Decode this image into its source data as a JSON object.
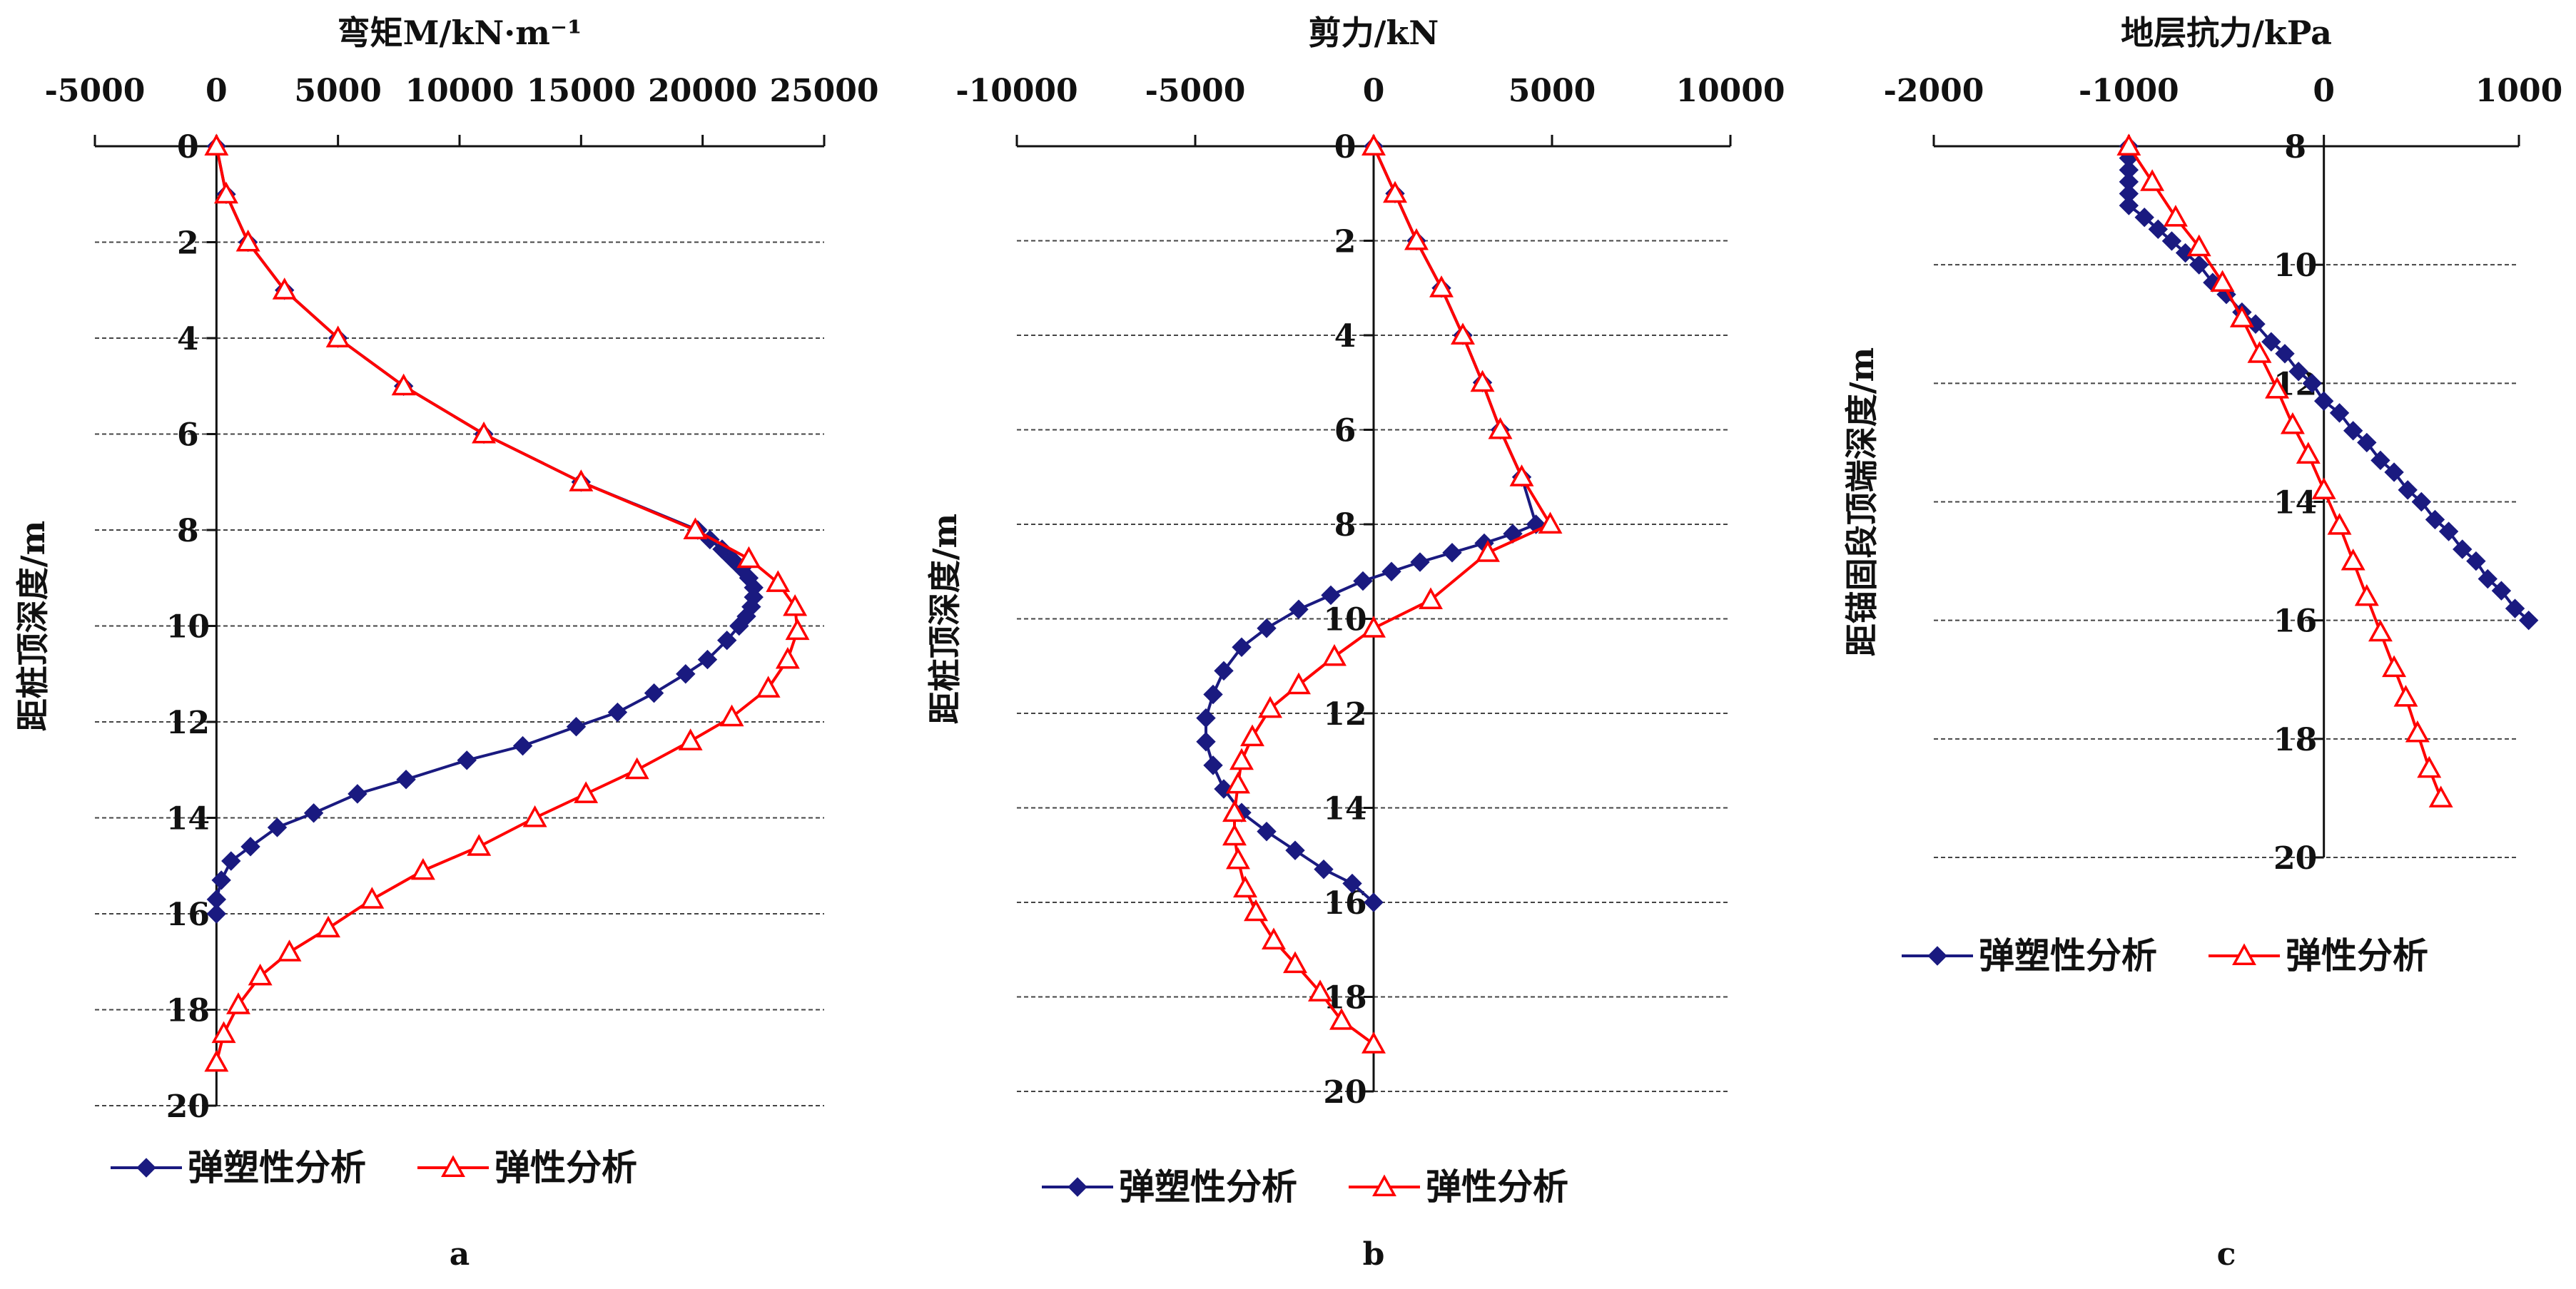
{
  "colors": {
    "elastoplastic": "#1a1a80",
    "elastic": "#ff0000",
    "axis": "#111111",
    "grid": "#444444"
  },
  "chart_data": [
    {
      "type": "line",
      "panel_label": "a",
      "title": "弯矩M/kN·m⁻¹",
      "xlabel": "弯矩M/kN·m⁻¹",
      "ylabel": "距桩顶深度/m",
      "xlim": [
        -5000,
        25000
      ],
      "ylim": [
        0,
        20
      ],
      "xticks": [
        -5000,
        0,
        5000,
        10000,
        15000,
        20000,
        25000
      ],
      "yticks": [
        0,
        2,
        4,
        6,
        8,
        10,
        12,
        14,
        16,
        18,
        20
      ],
      "x_axis_position": "top",
      "y_inverted": true,
      "grid": "horizontal dashed",
      "legend": "bottom",
      "series": [
        {
          "name": "弹塑性分析",
          "marker": "diamond",
          "points": [
            [
              0,
              0
            ],
            [
              400,
              1
            ],
            [
              1300,
              2
            ],
            [
              2800,
              3
            ],
            [
              5000,
              4
            ],
            [
              7700,
              5
            ],
            [
              11000,
              6
            ],
            [
              15000,
              7
            ],
            [
              19800,
              8
            ],
            [
              20300,
              8.2
            ],
            [
              20800,
              8.4
            ],
            [
              21200,
              8.6
            ],
            [
              21600,
              8.8
            ],
            [
              21900,
              9
            ],
            [
              22100,
              9.2
            ],
            [
              22100,
              9.4
            ],
            [
              22000,
              9.6
            ],
            [
              21800,
              9.8
            ],
            [
              21500,
              10
            ],
            [
              21000,
              10.3
            ],
            [
              20200,
              10.7
            ],
            [
              19300,
              11
            ],
            [
              18000,
              11.4
            ],
            [
              16500,
              11.8
            ],
            [
              14800,
              12.1
            ],
            [
              12600,
              12.5
            ],
            [
              10300,
              12.8
            ],
            [
              7800,
              13.2
            ],
            [
              5800,
              13.5
            ],
            [
              4000,
              13.9
            ],
            [
              2500,
              14.2
            ],
            [
              1400,
              14.6
            ],
            [
              600,
              14.9
            ],
            [
              200,
              15.3
            ],
            [
              0,
              15.7
            ],
            [
              0,
              16
            ]
          ]
        },
        {
          "name": "弹性分析",
          "marker": "triangle",
          "points": [
            [
              0,
              0
            ],
            [
              400,
              1
            ],
            [
              1300,
              2
            ],
            [
              2800,
              3
            ],
            [
              5000,
              4
            ],
            [
              7700,
              5
            ],
            [
              11000,
              6
            ],
            [
              15000,
              7
            ],
            [
              19700,
              8
            ],
            [
              21900,
              8.6
            ],
            [
              23100,
              9.1
            ],
            [
              23800,
              9.6
            ],
            [
              23900,
              10.1
            ],
            [
              23500,
              10.7
            ],
            [
              22700,
              11.3
            ],
            [
              21200,
              11.9
            ],
            [
              19500,
              12.4
            ],
            [
              17300,
              13
            ],
            [
              15200,
              13.5
            ],
            [
              13100,
              14
            ],
            [
              10800,
              14.6
            ],
            [
              8500,
              15.1
            ],
            [
              6400,
              15.7
            ],
            [
              4600,
              16.3
            ],
            [
              3000,
              16.8
            ],
            [
              1800,
              17.3
            ],
            [
              900,
              17.9
            ],
            [
              300,
              18.5
            ],
            [
              0,
              19.1
            ]
          ]
        }
      ]
    },
    {
      "type": "line",
      "panel_label": "b",
      "title": "剪力/kN",
      "xlabel": "剪力/kN",
      "ylabel": "距桩顶深度/m",
      "xlim": [
        -10000,
        10000
      ],
      "ylim": [
        0,
        20
      ],
      "xticks": [
        -10000,
        -5000,
        0,
        5000,
        10000
      ],
      "yticks": [
        0,
        2,
        4,
        6,
        8,
        10,
        12,
        14,
        16,
        18,
        20
      ],
      "x_axis_position": "top",
      "y_inverted": true,
      "grid": "horizontal dashed",
      "legend": "bottom",
      "series": [
        {
          "name": "弹塑性分析",
          "marker": "diamond",
          "points": [
            [
              0,
              0
            ],
            [
              600,
              1
            ],
            [
              1200,
              2
            ],
            [
              1900,
              3
            ],
            [
              2500,
              4
            ],
            [
              3050,
              5
            ],
            [
              3550,
              6
            ],
            [
              4150,
              7
            ],
            [
              4550,
              8
            ],
            [
              3900,
              8.2
            ],
            [
              3100,
              8.4
            ],
            [
              2200,
              8.6
            ],
            [
              1300,
              8.8
            ],
            [
              500,
              9
            ],
            [
              -300,
              9.2
            ],
            [
              -1200,
              9.5
            ],
            [
              -2100,
              9.8
            ],
            [
              -3000,
              10.2
            ],
            [
              -3700,
              10.6
            ],
            [
              -4200,
              11.1
            ],
            [
              -4500,
              11.6
            ],
            [
              -4700,
              12.1
            ],
            [
              -4700,
              12.6
            ],
            [
              -4500,
              13.1
            ],
            [
              -4200,
              13.6
            ],
            [
              -3700,
              14.1
            ],
            [
              -3000,
              14.5
            ],
            [
              -2200,
              14.9
            ],
            [
              -1400,
              15.3
            ],
            [
              -600,
              15.6
            ],
            [
              0,
              16
            ]
          ]
        },
        {
          "name": "弹性分析",
          "marker": "triangle",
          "points": [
            [
              0,
              0
            ],
            [
              600,
              1
            ],
            [
              1200,
              2
            ],
            [
              1900,
              3
            ],
            [
              2500,
              4
            ],
            [
              3050,
              5
            ],
            [
              3550,
              6
            ],
            [
              4150,
              7
            ],
            [
              4950,
              8
            ],
            [
              3200,
              8.6
            ],
            [
              1600,
              9.6
            ],
            [
              0,
              10.2
            ],
            [
              -1100,
              10.8
            ],
            [
              -2100,
              11.4
            ],
            [
              -2900,
              11.9
            ],
            [
              -3400,
              12.5
            ],
            [
              -3700,
              13
            ],
            [
              -3800,
              13.5
            ],
            [
              -3900,
              14.1
            ],
            [
              -3900,
              14.6
            ],
            [
              -3800,
              15.1
            ],
            [
              -3600,
              15.7
            ],
            [
              -3300,
              16.2
            ],
            [
              -2800,
              16.8
            ],
            [
              -2200,
              17.3
            ],
            [
              -1500,
              17.9
            ],
            [
              -900,
              18.5
            ],
            [
              0,
              19
            ]
          ]
        }
      ]
    },
    {
      "type": "line",
      "panel_label": "c",
      "title": "地层抗力/kPa",
      "xlabel": "地层抗力/kPa",
      "ylabel": "距锚固段顶端深度/m",
      "xlim": [
        -2000,
        1000
      ],
      "ylim": [
        8,
        20
      ],
      "xticks": [
        -2000,
        -1000,
        0,
        1000
      ],
      "yticks": [
        8,
        10,
        12,
        14,
        16,
        18,
        20
      ],
      "x_axis_position": "top",
      "y_inverted": true,
      "grid": "horizontal dashed",
      "legend": "bottom",
      "series": [
        {
          "name": "弹塑性分析",
          "marker": "diamond",
          "points": [
            [
              -1000,
              8
            ],
            [
              -1000,
              8.2
            ],
            [
              -1000,
              8.4
            ],
            [
              -1000,
              8.6
            ],
            [
              -1000,
              8.8
            ],
            [
              -1000,
              9
            ],
            [
              -920,
              9.2
            ],
            [
              -850,
              9.4
            ],
            [
              -780,
              9.6
            ],
            [
              -710,
              9.8
            ],
            [
              -640,
              10
            ],
            [
              -570,
              10.3
            ],
            [
              -500,
              10.5
            ],
            [
              -420,
              10.8
            ],
            [
              -350,
              11
            ],
            [
              -270,
              11.3
            ],
            [
              -200,
              11.5
            ],
            [
              -130,
              11.8
            ],
            [
              -60,
              12
            ],
            [
              0,
              12.3
            ],
            [
              80,
              12.5
            ],
            [
              150,
              12.8
            ],
            [
              220,
              13
            ],
            [
              290,
              13.3
            ],
            [
              360,
              13.5
            ],
            [
              430,
              13.8
            ],
            [
              500,
              14
            ],
            [
              570,
              14.3
            ],
            [
              640,
              14.5
            ],
            [
              710,
              14.8
            ],
            [
              780,
              15
            ],
            [
              840,
              15.3
            ],
            [
              910,
              15.5
            ],
            [
              980,
              15.8
            ],
            [
              1050,
              16
            ]
          ]
        },
        {
          "name": "弹性分析",
          "marker": "triangle",
          "points": [
            [
              -1000,
              8
            ],
            [
              -880,
              8.6
            ],
            [
              -760,
              9.2
            ],
            [
              -640,
              9.7
            ],
            [
              -520,
              10.3
            ],
            [
              -420,
              10.9
            ],
            [
              -330,
              11.5
            ],
            [
              -240,
              12.1
            ],
            [
              -160,
              12.7
            ],
            [
              -80,
              13.2
            ],
            [
              0,
              13.8
            ],
            [
              80,
              14.4
            ],
            [
              150,
              15
            ],
            [
              220,
              15.6
            ],
            [
              290,
              16.2
            ],
            [
              360,
              16.8
            ],
            [
              420,
              17.3
            ],
            [
              480,
              17.9
            ],
            [
              540,
              18.5
            ],
            [
              600,
              19
            ]
          ]
        }
      ]
    }
  ]
}
